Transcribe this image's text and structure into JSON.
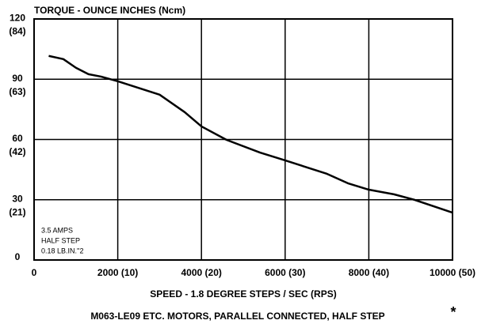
{
  "chart_data": {
    "type": "line",
    "title": "TORQUE - OUNCE INCHES (Ncm)",
    "xlabel": "SPEED - 1.8 DEGREE STEPS / SEC (RPS)",
    "caption": "M063-LE09 ETC. MOTORS, PARALLEL CONNECTED, HALF STEP",
    "caption_mark": "*",
    "annotations": [
      "3.5 AMPS",
      "HALF STEP",
      "0.18 LB.IN.''2"
    ],
    "x": [
      350,
      700,
      1000,
      1300,
      1600,
      2000,
      3000,
      3600,
      4000,
      4600,
      5400,
      6000,
      7000,
      7500,
      8000,
      8600,
      9100,
      10000
    ],
    "series": [
      {
        "color": "#000000",
        "values": [
          101.6,
          100,
          95.7,
          92.5,
          91.3,
          89,
          82.3,
          73.6,
          66.5,
          59.8,
          53.5,
          49.6,
          42.9,
          38.2,
          35,
          32.7,
          29.9,
          23.6
        ]
      }
    ],
    "xlim": [
      0,
      10000
    ],
    "xticks": [
      0,
      {
        "value": 2000,
        "label": "2000 (10)"
      },
      {
        "value": 4000,
        "label": "4000 (20)"
      },
      {
        "value": 6000,
        "label": "6000 (30)"
      },
      {
        "value": 8000,
        "label": "8000 (40)"
      },
      {
        "value": 10000,
        "label": "10000 (50)"
      }
    ],
    "ylim": [
      0,
      120
    ],
    "yticks": [
      0,
      {
        "value": 30,
        "label": "30 (21)"
      },
      {
        "value": 60,
        "label": "60 (42)"
      },
      {
        "value": 90,
        "label": "90 (63)"
      },
      {
        "value": 120,
        "label": "120 (84)"
      }
    ],
    "grid": true
  }
}
